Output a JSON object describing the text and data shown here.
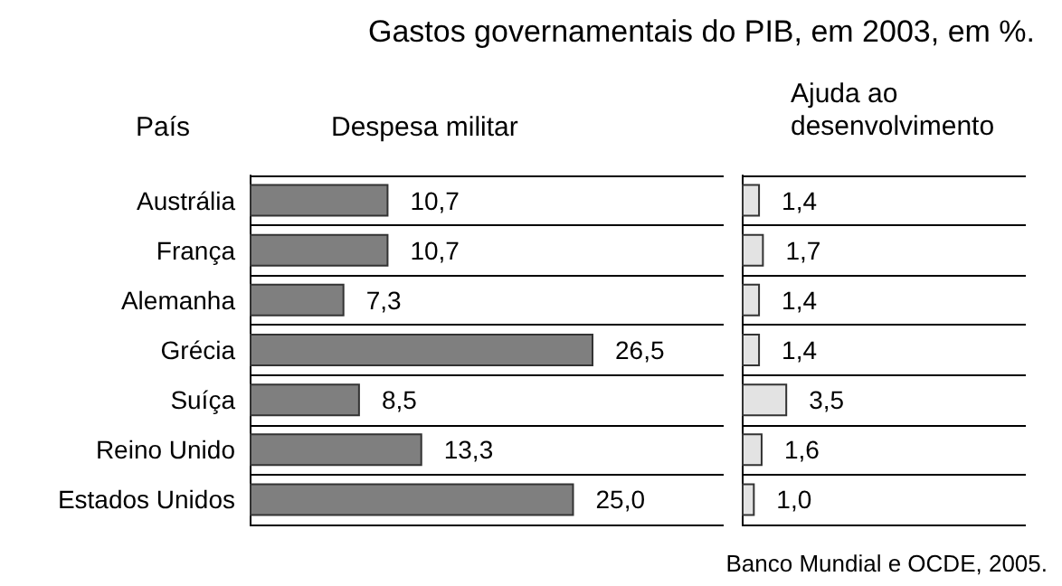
{
  "chart_data": [
    {
      "type": "bar",
      "orientation": "horizontal",
      "title": "Gastos governamentais do PIB, em 2003, em %.",
      "subtitle": "Despesa militar",
      "ylabel": "País",
      "categories": [
        "Austrália",
        "França",
        "Alemanha",
        "Grécia",
        "Suíça",
        "Reino Unido",
        "Estados Unidos"
      ],
      "values": [
        10.7,
        10.7,
        7.3,
        26.5,
        8.5,
        13.3,
        25.0
      ],
      "color": "#7f7f7f",
      "value_labels": [
        "10,7",
        "10,7",
        "7,3",
        "26,5",
        "8,5",
        "13,3",
        "25,0"
      ],
      "grid": "y",
      "tick_labels": "y",
      "annotations": [
        "Banco Mundial e OCDE, 2005."
      ]
    },
    {
      "type": "bar",
      "orientation": "horizontal",
      "title": "Ajuda ao desenvolvimento",
      "categories": [
        null,
        null,
        null,
        null,
        null,
        null,
        null
      ],
      "values": [
        1.4,
        1.7,
        1.4,
        1.4,
        3.5,
        1.6,
        1.0
      ],
      "color": "#e3e3e3",
      "value_labels": [
        "1,4",
        "1,7",
        "1,4",
        "1,4",
        "3,5",
        "1,6",
        "1,0"
      ],
      "grid": "y",
      "tick_labels": false
    }
  ]
}
